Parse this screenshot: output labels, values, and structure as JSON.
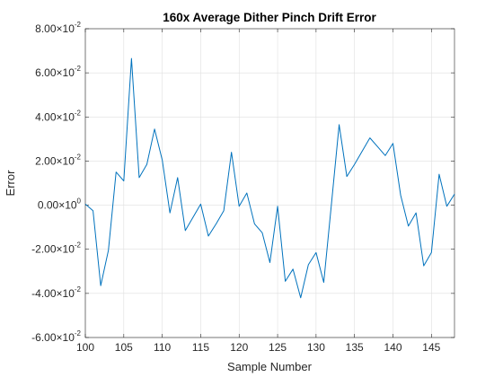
{
  "chart_data": {
    "type": "line",
    "title": "160x Average Dither Pinch Drift Error",
    "xlabel": "Sample Number",
    "ylabel": "Error",
    "xlim": [
      100,
      148
    ],
    "ylim": [
      -0.06,
      0.08
    ],
    "x_ticks": [
      {
        "value": 100,
        "label": "100"
      },
      {
        "value": 105,
        "label": "105"
      },
      {
        "value": 110,
        "label": "110"
      },
      {
        "value": 115,
        "label": "115"
      },
      {
        "value": 120,
        "label": "120"
      },
      {
        "value": 125,
        "label": "125"
      },
      {
        "value": 130,
        "label": "130"
      },
      {
        "value": 135,
        "label": "135"
      },
      {
        "value": 140,
        "label": "140"
      },
      {
        "value": 145,
        "label": "145"
      }
    ],
    "y_ticks": [
      {
        "value": -0.06,
        "mantissa": "-6.00",
        "times": "×10",
        "exponent": "-2"
      },
      {
        "value": -0.04,
        "mantissa": "-4.00",
        "times": "×10",
        "exponent": "-2"
      },
      {
        "value": -0.02,
        "mantissa": "-2.00",
        "times": "×10",
        "exponent": "-2"
      },
      {
        "value": 0.0,
        "mantissa": "0.00",
        "times": "×10",
        "exponent": "0"
      },
      {
        "value": 0.02,
        "mantissa": "2.00",
        "times": "×10",
        "exponent": "-2"
      },
      {
        "value": 0.04,
        "mantissa": "4.00",
        "times": "×10",
        "exponent": "-2"
      },
      {
        "value": 0.06,
        "mantissa": "6.00",
        "times": "×10",
        "exponent": "-2"
      },
      {
        "value": 0.08,
        "mantissa": "8.00",
        "times": "×10",
        "exponent": "-2"
      }
    ],
    "grid": true,
    "series": [
      {
        "color": "#0072BD",
        "x": [
          100,
          101,
          102,
          103,
          104,
          105,
          106,
          107,
          108,
          109,
          110,
          111,
          112,
          113,
          114,
          115,
          116,
          117,
          118,
          119,
          120,
          121,
          122,
          123,
          124,
          125,
          126,
          127,
          128,
          129,
          130,
          131,
          132,
          133,
          134,
          135,
          136,
          137,
          138,
          139,
          140,
          141,
          142,
          143,
          144,
          145,
          146,
          147,
          148
        ],
        "y": [
          0.0005,
          -0.0025,
          -0.0365,
          -0.0205,
          0.015,
          0.011,
          0.0665,
          0.0125,
          0.0185,
          0.0345,
          0.0205,
          -0.0035,
          0.0125,
          -0.0115,
          -0.0055,
          0.0005,
          -0.014,
          -0.0085,
          -0.0025,
          0.024,
          -0.0005,
          0.0055,
          -0.0085,
          -0.0125,
          -0.026,
          -0.0005,
          -0.0345,
          -0.029,
          -0.042,
          -0.027,
          -0.0215,
          -0.035,
          0.0005,
          0.0365,
          0.013,
          0.0185,
          0.0245,
          0.0305,
          0.0265,
          0.0225,
          0.028,
          0.0045,
          -0.0095,
          -0.0035,
          -0.0275,
          -0.0215,
          0.014,
          -0.0005,
          0.005
        ]
      }
    ]
  }
}
